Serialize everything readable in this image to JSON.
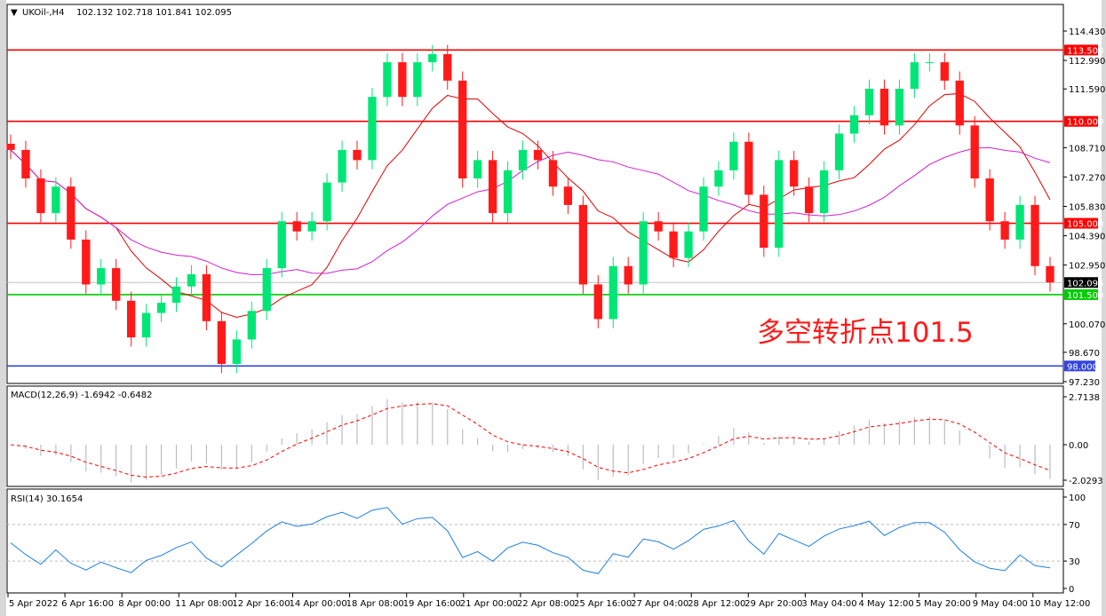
{
  "header": {
    "symbol": "UKOil-,H4",
    "ohlc": "102.132 102.718 101.841 102.095"
  },
  "annotation": "多空转折点101.5",
  "colors": {
    "bull": "#00e676",
    "bear": "#ff1a1a",
    "ma_fast": "#e00000",
    "ma_slow": "#d020d0",
    "resistance": "#ff0000",
    "pivot": "#00cc00",
    "support": "#3344dd",
    "macd_hist": "#bdbdbd",
    "macd_signal": "#ff0000",
    "rsi": "#1e7fe0"
  },
  "chart_data": [
    {
      "type": "candlestick",
      "panel": "main",
      "y_ticks": [
        114.43,
        112.99,
        111.59,
        108.71,
        107.27,
        105.83,
        104.39,
        102.95,
        100.07,
        98.67,
        97.23
      ],
      "ylim": [
        97.23,
        114.43
      ],
      "x_ticks": [
        "5 Apr 2022",
        "6 Apr 16:00",
        "8 Apr 00:00",
        "11 Apr 08:00",
        "12 Apr 16:00",
        "14 Apr 00:00",
        "18 Apr 08:00",
        "19 Apr 16:00",
        "21 Apr 00:00",
        "22 Apr 08:00",
        "25 Apr 16:00",
        "27 Apr 04:00",
        "28 Apr 12:00",
        "29 Apr 20:00",
        "3 May 04:00",
        "4 May 12:00",
        "5 May 20:00",
        "9 May 04:00",
        "10 May 12:00"
      ],
      "closes": [
        108.6,
        107.2,
        105.5,
        106.8,
        104.2,
        102.0,
        102.8,
        101.2,
        99.4,
        100.6,
        101.1,
        101.9,
        102.5,
        100.2,
        98.1,
        99.3,
        100.7,
        102.8,
        105.1,
        104.6,
        105.1,
        107.0,
        108.6,
        108.1,
        111.2,
        112.9,
        111.2,
        112.9,
        113.3,
        112.0,
        107.2,
        108.1,
        105.5,
        107.6,
        108.6,
        108.1,
        106.8,
        105.9,
        102.0,
        100.3,
        102.9,
        102.0,
        105.1,
        104.6,
        103.3,
        104.6,
        106.8,
        107.6,
        109.0,
        106.4,
        103.8,
        108.1,
        106.8,
        105.5,
        107.6,
        109.4,
        110.3,
        111.6,
        109.8,
        111.6,
        112.9,
        112.9,
        112.0,
        109.8,
        107.2,
        105.1,
        104.2,
        105.9,
        102.9,
        102.1
      ],
      "horizontal_levels": [
        {
          "value": 113.5,
          "label": "113.500",
          "kind": "resistance"
        },
        {
          "value": 110.0,
          "label": "110.000",
          "kind": "resistance"
        },
        {
          "value": 105.0,
          "label": "105.000",
          "kind": "resistance"
        },
        {
          "value": 101.5,
          "label": "101.500",
          "kind": "pivot"
        },
        {
          "value": 98.0,
          "label": "98.000",
          "kind": "support"
        }
      ],
      "current_price": {
        "value": 102.095,
        "label": "102.095"
      }
    },
    {
      "type": "bar+line",
      "panel": "macd",
      "title": "MACD(12,26,9) -1.6942 -0.6482",
      "y_ticks": [
        "2.7138",
        "0.00",
        "-2.0293"
      ],
      "ylim": [
        -2.0293,
        2.7138
      ]
    },
    {
      "type": "line",
      "panel": "rsi",
      "title": "RSI(14) 30.1654",
      "y_ticks": [
        "100",
        "70",
        "30",
        "0"
      ],
      "ylim": [
        0,
        100
      ],
      "levels": [
        70,
        30
      ]
    }
  ]
}
